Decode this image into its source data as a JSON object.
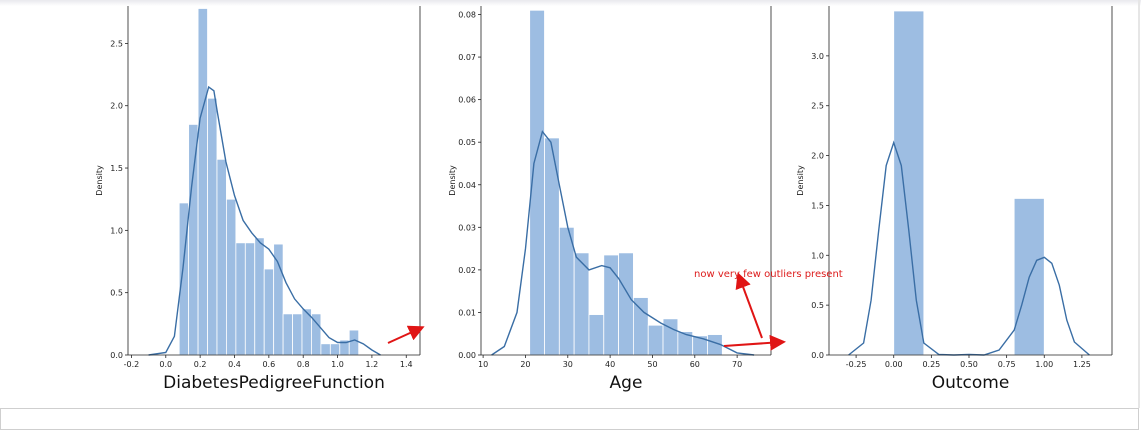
{
  "chart_data": [
    {
      "type": "histogram",
      "xlabel": "DiabetesPedigreeFunction",
      "ylabel": "Density",
      "xlim": [
        -0.22,
        1.48
      ],
      "ylim": [
        0,
        2.8
      ],
      "xticks": [
        -0.2,
        0.0,
        0.2,
        0.4,
        0.6,
        0.8,
        1.0,
        1.2,
        1.4
      ],
      "yticks": [
        0.0,
        0.5,
        1.0,
        1.5,
        2.0,
        2.5
      ],
      "bin_edges": [
        0.078,
        0.133,
        0.188,
        0.243,
        0.298,
        0.353,
        0.408,
        0.463,
        0.518,
        0.573,
        0.628,
        0.683,
        0.738,
        0.793,
        0.848,
        0.903,
        0.958,
        1.013,
        1.068,
        1.123,
        1.178
      ],
      "values": [
        1.22,
        1.85,
        2.78,
        2.06,
        1.57,
        1.25,
        0.9,
        0.9,
        0.94,
        0.69,
        0.89,
        0.33,
        0.33,
        0.37,
        0.33,
        0.09,
        0.09,
        0.12,
        0.2,
        0.0
      ],
      "kde": {
        "x": [
          -0.1,
          0.0,
          0.05,
          0.1,
          0.15,
          0.2,
          0.25,
          0.28,
          0.3,
          0.35,
          0.4,
          0.45,
          0.5,
          0.55,
          0.6,
          0.65,
          0.7,
          0.75,
          0.8,
          0.85,
          0.9,
          0.95,
          1.0,
          1.05,
          1.1,
          1.15,
          1.2,
          1.25
        ],
        "y": [
          0.0,
          0.02,
          0.15,
          0.7,
          1.35,
          1.9,
          2.15,
          2.12,
          1.95,
          1.55,
          1.28,
          1.08,
          0.98,
          0.9,
          0.85,
          0.75,
          0.58,
          0.45,
          0.37,
          0.3,
          0.22,
          0.14,
          0.1,
          0.1,
          0.12,
          0.09,
          0.04,
          0.0
        ]
      }
    },
    {
      "type": "histogram",
      "xlabel": "Age",
      "ylabel": "Density",
      "xlim": [
        9.5,
        78
      ],
      "ylim": [
        0,
        0.082
      ],
      "xticks": [
        10,
        20,
        30,
        40,
        50,
        60,
        70
      ],
      "yticks": [
        0.0,
        0.01,
        0.02,
        0.03,
        0.04,
        0.05,
        0.06,
        0.07,
        0.08
      ],
      "bin_edges": [
        21,
        24.5,
        28,
        31.5,
        35,
        38.5,
        42,
        45.5,
        49,
        52.5,
        56,
        59.5,
        63,
        66.5
      ],
      "values": [
        0.081,
        0.051,
        0.03,
        0.024,
        0.0095,
        0.0235,
        0.024,
        0.0135,
        0.007,
        0.0085,
        0.0055,
        0.0045,
        0.0048
      ],
      "kde": {
        "x": [
          12,
          15,
          18,
          20,
          22,
          24,
          26,
          28,
          30,
          32,
          35,
          38,
          40,
          42,
          45,
          48,
          52,
          55,
          58,
          62,
          66,
          70,
          74
        ],
        "y": [
          0.0,
          0.002,
          0.01,
          0.025,
          0.045,
          0.0525,
          0.05,
          0.04,
          0.03,
          0.023,
          0.02,
          0.021,
          0.0205,
          0.018,
          0.013,
          0.01,
          0.0075,
          0.006,
          0.0048,
          0.0038,
          0.0025,
          0.0005,
          0.0
        ]
      }
    },
    {
      "type": "histogram",
      "xlabel": "Outcome",
      "ylabel": "Density",
      "xlim": [
        -0.43,
        1.45
      ],
      "ylim": [
        0,
        3.5
      ],
      "xticks": [
        -0.25,
        0.0,
        0.25,
        0.5,
        0.75,
        1.0,
        1.25
      ],
      "yticks": [
        0.0,
        0.5,
        1.0,
        1.5,
        2.0,
        2.5,
        3.0
      ],
      "bin_edges": [
        0.0,
        0.2,
        0.8,
        1.0
      ],
      "values": [
        3.45,
        0.0,
        1.57
      ],
      "kde": {
        "x": [
          -0.3,
          -0.2,
          -0.15,
          -0.1,
          -0.05,
          0.0,
          0.05,
          0.1,
          0.15,
          0.2,
          0.3,
          0.4,
          0.5,
          0.6,
          0.7,
          0.8,
          0.85,
          0.9,
          0.95,
          1.0,
          1.05,
          1.1,
          1.15,
          1.2,
          1.3
        ],
        "y": [
          0.0,
          0.12,
          0.55,
          1.25,
          1.9,
          2.13,
          1.9,
          1.25,
          0.55,
          0.12,
          0.005,
          0.0,
          0.005,
          0.0,
          0.05,
          0.25,
          0.5,
          0.78,
          0.95,
          0.98,
          0.92,
          0.7,
          0.35,
          0.13,
          0.0
        ]
      }
    }
  ],
  "annotation": {
    "text": "now  very few outliers present"
  }
}
